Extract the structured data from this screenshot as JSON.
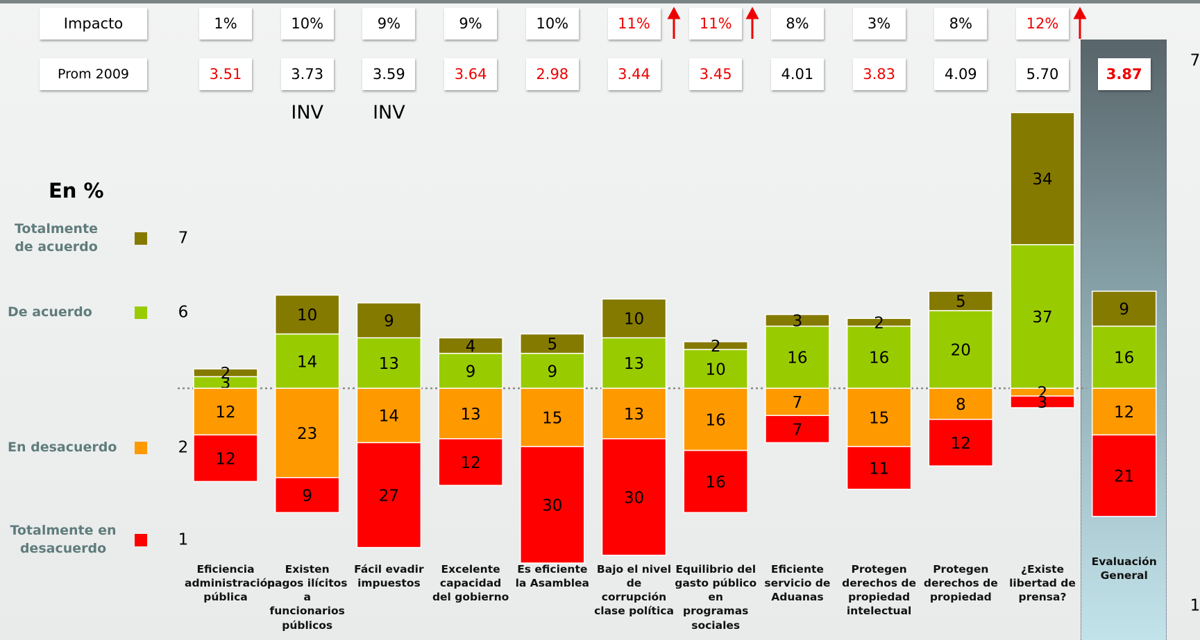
{
  "chart_data": {
    "type": "bar",
    "subtitle": "En %",
    "categories": [
      "Eficiencia administración pública",
      "Existen pagos ilícitos a funcionarios públicos",
      "Fácil evadir impuestos",
      "Excelente capacidad del gobierno",
      "Es eficiente la Asamblea",
      "Bajo el nivel de corrupción clase política",
      "Equilibrio del gasto público en programas sociales",
      "Eficiente servicio de Aduanas",
      "Protegen derechos de propiedad intelectual",
      "Protegen derechos de propiedad",
      "¿Existe libertad de prensa?",
      "Evaluación General"
    ],
    "series": [
      {
        "name": "Totalmente de acuerdo",
        "score": 7,
        "color": "#857a00",
        "side": "up",
        "values": [
          2,
          10,
          9,
          4,
          5,
          10,
          2,
          3,
          2,
          5,
          34,
          9
        ]
      },
      {
        "name": "De acuerdo",
        "score": 6,
        "color": "#99cc00",
        "side": "up",
        "values": [
          3,
          14,
          13,
          9,
          9,
          13,
          10,
          16,
          16,
          20,
          37,
          16
        ]
      },
      {
        "name": "En desacuerdo",
        "score": 2,
        "color": "#ff9900",
        "side": "down",
        "values": [
          12,
          23,
          14,
          13,
          15,
          13,
          16,
          7,
          15,
          8,
          2,
          12
        ]
      },
      {
        "name": "Totalmente en desacuerdo",
        "score": 1,
        "color": "#ff0000",
        "side": "down",
        "values": [
          12,
          9,
          27,
          12,
          30,
          30,
          16,
          7,
          11,
          12,
          3,
          21
        ]
      }
    ],
    "impact_label": "Impacto",
    "impact": [
      "1%",
      "10%",
      "9%",
      "9%",
      "10%",
      "11%",
      "11%",
      "8%",
      "3%",
      "8%",
      "12%"
    ],
    "impact_colors": [
      "#000",
      "#000",
      "#000",
      "#000",
      "#000",
      "#e00",
      "#e00",
      "#000",
      "#000",
      "#000",
      "#e00"
    ],
    "prom_label": "Prom 2009",
    "prom": [
      "3.51",
      "3.73",
      "3.59",
      "3.64",
      "2.98",
      "3.44",
      "3.45",
      "4.01",
      "3.83",
      "4.09",
      "5.70",
      "3.87"
    ],
    "prom_colors": [
      "#e00",
      "#000",
      "#000",
      "#e00",
      "#e00",
      "#e00",
      "#e00",
      "#000",
      "#e00",
      "#000",
      "#000",
      "#e00"
    ],
    "notes": [
      "INV",
      "INV"
    ],
    "right_scale": [
      7,
      1
    ]
  }
}
